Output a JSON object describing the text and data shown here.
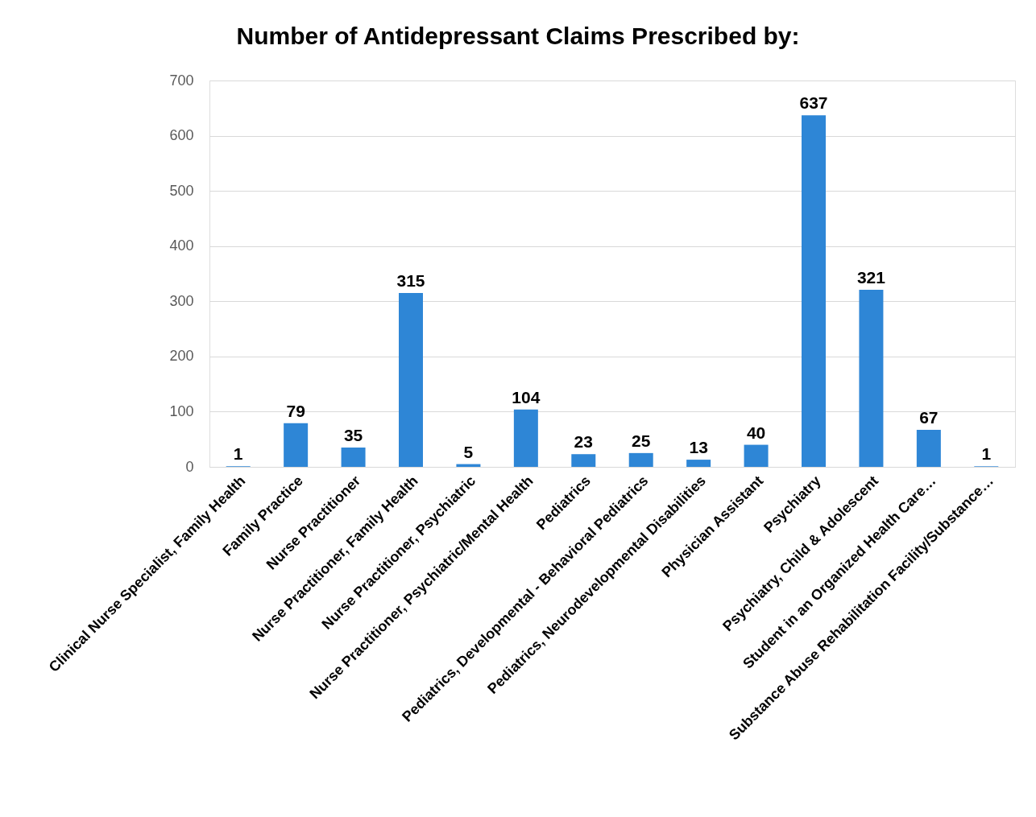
{
  "chart_data": {
    "type": "bar",
    "title": "Number of Antidepressant Claims Prescribed by:",
    "categories": [
      "Clinical Nurse Specialist, Family Health",
      "Family Practice",
      "Nurse Practitioner",
      "Nurse Practitioner, Family Health",
      "Nurse Practitioner, Psychiatric",
      "Nurse Practitioner, Psychiatric/Mental Health",
      "Pediatrics",
      "Pediatrics, Developmental - Behavioral Pediatrics",
      "Pediatrics, Neurodevelopmental Disabilities",
      "Physician Assistant",
      "Psychiatry",
      "Psychiatry, Child & Adolescent",
      "Student in an Organized Health Care…",
      "Substance Abuse Rehabilitation Facility/Substance…"
    ],
    "values": [
      1,
      79,
      35,
      315,
      5,
      104,
      23,
      25,
      13,
      40,
      637,
      321,
      67,
      1
    ],
    "color": "#2e86d6",
    "ylim": [
      0,
      700
    ],
    "yticks": [
      0,
      100,
      200,
      300,
      400,
      500,
      600,
      700
    ],
    "grid": "y",
    "data_labels": true
  }
}
